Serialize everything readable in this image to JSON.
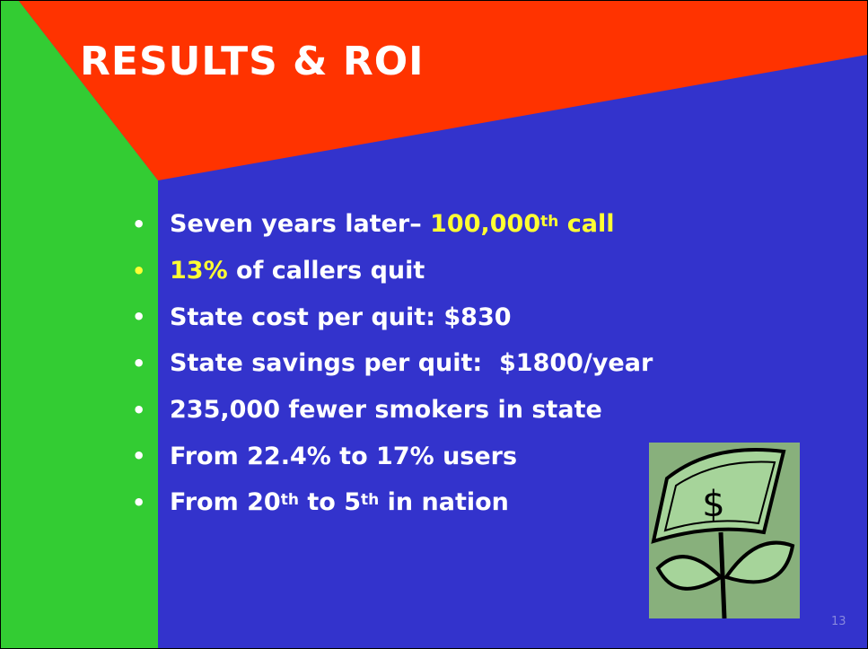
{
  "slide": {
    "title": "RESULTS & ROI",
    "bullets": [
      {
        "bullet_color": "#ffffff",
        "runs": [
          {
            "text": "Seven years later– ",
            "color": "#ffffff"
          },
          {
            "text": "100,000",
            "color": "#ffff33"
          },
          {
            "text": "th",
            "color": "#ffff33",
            "sup": true
          },
          {
            "text": " call",
            "color": "#ffff33"
          }
        ]
      },
      {
        "bullet_color": "#ffff33",
        "runs": [
          {
            "text": "13%",
            "color": "#ffff33"
          },
          {
            "text": " of callers quit",
            "color": "#ffffff"
          }
        ]
      },
      {
        "bullet_color": "#ffffff",
        "runs": [
          {
            "text": "State cost per quit: $830",
            "color": "#ffffff"
          }
        ]
      },
      {
        "bullet_color": "#ffffff",
        "runs": [
          {
            "text": "State savings per quit:  $1800/year",
            "color": "#ffffff"
          }
        ]
      },
      {
        "bullet_color": "#ffffff",
        "runs": [
          {
            "text": "235,000 fewer smokers in state",
            "color": "#ffffff"
          }
        ]
      },
      {
        "bullet_color": "#ffffff",
        "runs": [
          {
            "text": "From 22.4% to 17% users",
            "color": "#ffffff"
          }
        ]
      },
      {
        "bullet_color": "#ffffff",
        "runs": [
          {
            "text": "From ",
            "color": "#ffffff"
          },
          {
            "text": "20",
            "color": "#ffffff"
          },
          {
            "text": "th",
            "color": "#ffffff",
            "sup": true
          },
          {
            "text": " to ",
            "color": "#ffffff"
          },
          {
            "text": "5",
            "color": "#ffffff"
          },
          {
            "text": "th",
            "color": "#ffffff",
            "sup": true
          },
          {
            "text": " in nation",
            "color": "#ffffff"
          }
        ]
      }
    ],
    "page_number": "13"
  }
}
